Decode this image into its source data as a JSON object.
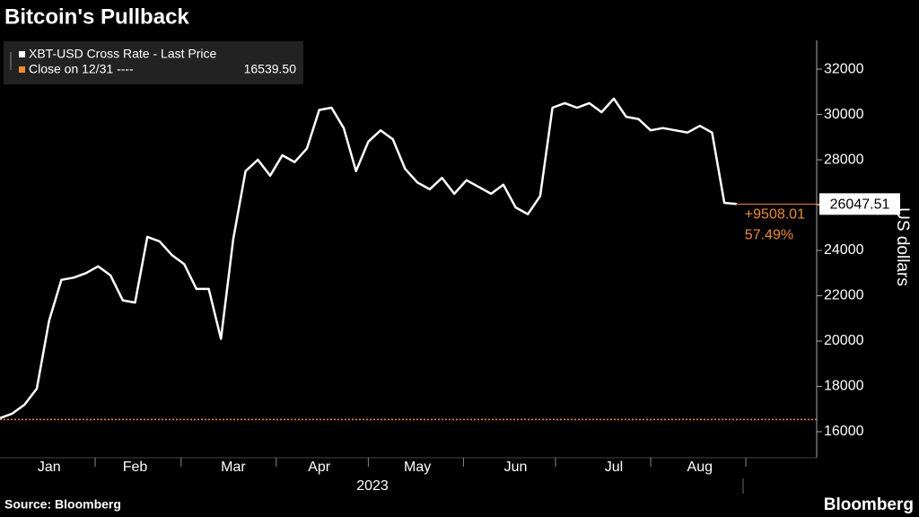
{
  "chart_data": {
    "type": "line",
    "title": "Bitcoin's Pullback",
    "y_label": "US dollars",
    "year_label": "2023",
    "source": "Source: Bloomberg",
    "logo": "Bloomberg",
    "categories": [
      null,
      null,
      null,
      null,
      "Jan",
      null,
      null,
      null,
      null,
      null,
      null,
      "Feb",
      null,
      null,
      null,
      null,
      null,
      null,
      null,
      "Mar",
      null,
      null,
      null,
      null,
      null,
      null,
      "Apr",
      null,
      null,
      null,
      null,
      null,
      null,
      null,
      "May",
      null,
      null,
      null,
      null,
      null,
      null,
      null,
      "Jun",
      null,
      null,
      null,
      null,
      null,
      null,
      null,
      "Jul",
      null,
      null,
      null,
      null,
      null,
      null,
      "Aug",
      null,
      null,
      null
    ],
    "series": [
      {
        "name": "XBT-USD Cross Rate - Last Price",
        "color": "#ffffff",
        "values": [
          16600,
          16800,
          17200,
          17900,
          20900,
          22700,
          22800,
          23000,
          23300,
          22900,
          21800,
          21700,
          24600,
          24400,
          23800,
          23400,
          22300,
          22300,
          20100,
          24500,
          27500,
          28000,
          27300,
          28200,
          27900,
          28500,
          30200,
          30300,
          29400,
          27500,
          28800,
          29300,
          28900,
          27600,
          27000,
          26700,
          27200,
          26500,
          27100,
          26800,
          26500,
          26900,
          25900,
          25600,
          26400,
          30300,
          30500,
          30300,
          30500,
          30100,
          30700,
          29900,
          29800,
          29300,
          29400,
          29300,
          29200,
          29500,
          29200,
          26100,
          26047.51
        ]
      }
    ],
    "reference": {
      "name": "Close on 12/31 ----",
      "value": 16539.5,
      "label": "16539.50",
      "color": "#f28c28"
    },
    "annotations": {
      "change": "+9508.01",
      "percent": "57.49%"
    },
    "ylim": [
      14850,
      33270
    ],
    "yticks": [
      16000,
      18000,
      20000,
      22000,
      24000,
      26000,
      28000,
      30000,
      32000
    ]
  }
}
